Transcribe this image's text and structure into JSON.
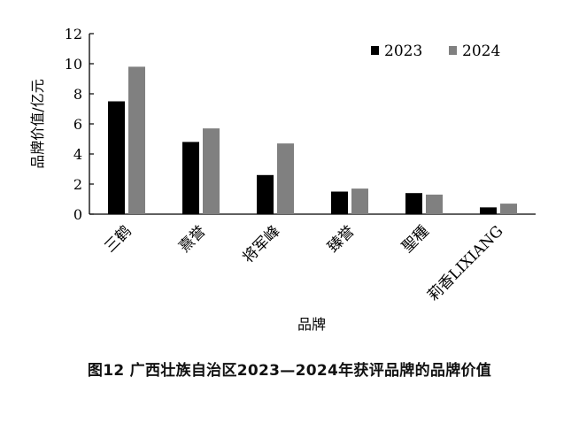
{
  "chart_data": {
    "type": "bar",
    "title": "",
    "xlabel": "品牌",
    "ylabel": "品牌价值/亿元",
    "ylim": [
      0,
      12
    ],
    "yticks": [
      "0",
      "2",
      "4",
      "6",
      "8",
      "10",
      "12"
    ],
    "ytick_values": [
      0,
      2,
      4,
      6,
      8,
      10,
      12
    ],
    "categories": [
      "三鹤",
      "熹誉",
      "将军峰",
      "臻誉",
      "聖種",
      "莉香LIXIANG"
    ],
    "series": [
      {
        "name": "2023",
        "color": "#000000",
        "values": [
          7.5,
          4.8,
          2.6,
          1.5,
          1.4,
          0.45
        ]
      },
      {
        "name": "2024",
        "color": "#808080",
        "values": [
          9.8,
          5.7,
          4.7,
          1.7,
          1.3,
          0.7
        ]
      }
    ],
    "legend_position": "top-right",
    "grid": false
  },
  "caption": "图12  广西壮族自治区2023—2024年获评品牌的品牌价值"
}
